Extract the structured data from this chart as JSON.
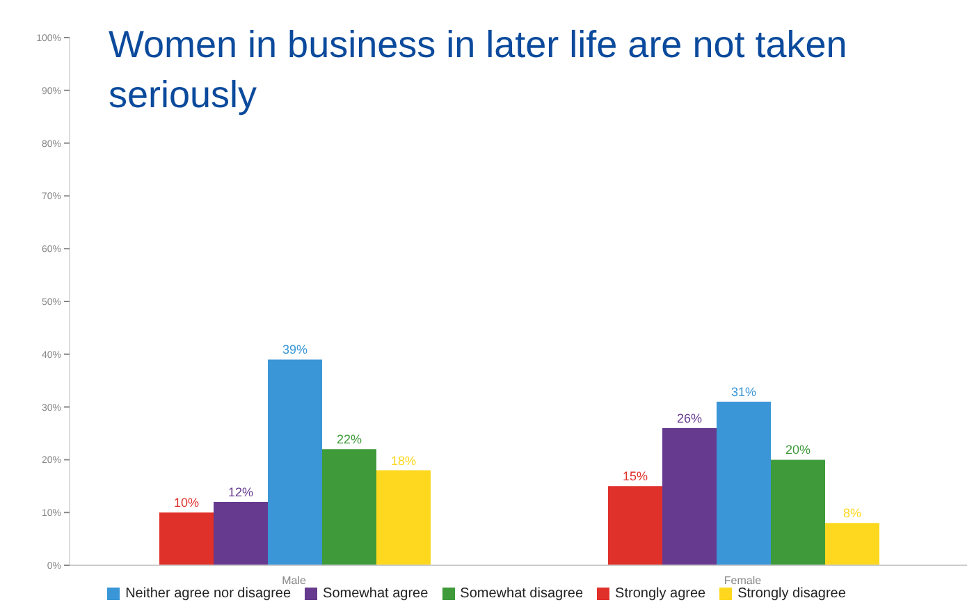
{
  "chart_data": {
    "type": "bar",
    "title": "Women in business in later life are not taken seriously",
    "categories": [
      "Male",
      "Female"
    ],
    "series": [
      {
        "name": "Strongly agree",
        "color": "#e0302a",
        "values": [
          10,
          15
        ],
        "value_labels": [
          "10%",
          "15%"
        ]
      },
      {
        "name": "Somewhat agree",
        "color": "#663a8e",
        "values": [
          12,
          26
        ],
        "value_labels": [
          "12%",
          "26%"
        ]
      },
      {
        "name": "Neither agree nor disagree",
        "color": "#3a96d6",
        "values": [
          39,
          31
        ],
        "value_labels": [
          "39%",
          "31%"
        ]
      },
      {
        "name": "Somewhat disagree",
        "color": "#3f9a3a",
        "values": [
          22,
          20
        ],
        "value_labels": [
          "22%",
          "20%"
        ]
      },
      {
        "name": "Strongly disagree",
        "color": "#fdd81f",
        "values": [
          18,
          8
        ],
        "value_labels": [
          "18%",
          "8%"
        ]
      }
    ],
    "ylim": [
      0,
      100
    ],
    "yticks": [
      {
        "value": 0,
        "label": "0%"
      },
      {
        "value": 10,
        "label": "10%"
      },
      {
        "value": 20,
        "label": "20%"
      },
      {
        "value": 30,
        "label": "30%"
      },
      {
        "value": 40,
        "label": "40%"
      },
      {
        "value": 50,
        "label": "50%"
      },
      {
        "value": 60,
        "label": "60%"
      },
      {
        "value": 70,
        "label": "70%"
      },
      {
        "value": 80,
        "label": "80%"
      },
      {
        "value": 90,
        "label": "90%"
      },
      {
        "value": 100,
        "label": "100%"
      }
    ],
    "grid": false,
    "legend": "bottom"
  }
}
